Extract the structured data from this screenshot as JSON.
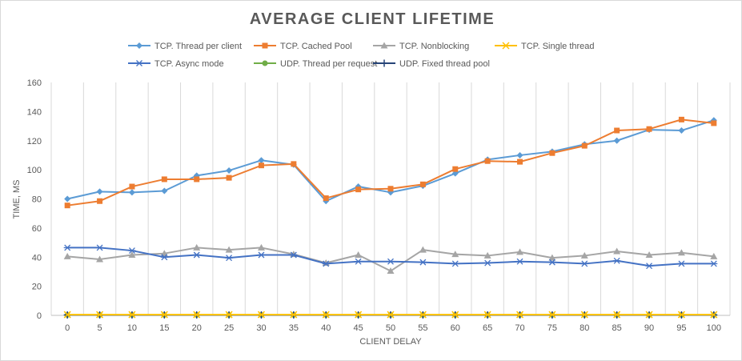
{
  "chart_data": {
    "type": "line",
    "title": "AVERAGE CLIENT LIFETIME",
    "xlabel": "CLIENT DELAY",
    "ylabel": "TIME, MS",
    "ylim": [
      0,
      160
    ],
    "yticks": [
      0,
      20,
      40,
      60,
      80,
      100,
      120,
      140,
      160
    ],
    "grid": "vertical",
    "legend": "top",
    "categories": [
      "0",
      "5",
      "10",
      "15",
      "20",
      "25",
      "30",
      "35",
      "40",
      "45",
      "50",
      "55",
      "60",
      "65",
      "70",
      "75",
      "80",
      "85",
      "90",
      "95",
      "100"
    ],
    "series": [
      {
        "name": "TCP. Thread per client",
        "color": "#5b9bd5",
        "marker": "diamond",
        "values": [
          80,
          85,
          84.5,
          85.5,
          96,
          99.5,
          106.5,
          103.5,
          78.5,
          88.5,
          84.5,
          89,
          97.5,
          107,
          110,
          112.5,
          117.5,
          120,
          127.5,
          127,
          134
        ]
      },
      {
        "name": "TCP. Cached Pool",
        "color": "#ed7d31",
        "marker": "square",
        "values": [
          75.5,
          78.5,
          88.5,
          93.5,
          93.5,
          94.5,
          103,
          104,
          80.5,
          86.5,
          87,
          90,
          100.5,
          106,
          105.5,
          111.5,
          116.5,
          127,
          128,
          134.5,
          132
        ]
      },
      {
        "name": "TCP. Nonblocking",
        "color": "#a5a5a5",
        "marker": "triangle",
        "values": [
          40.5,
          38.5,
          41.5,
          42.5,
          46.5,
          45,
          46.5,
          42,
          36,
          41.5,
          30.5,
          45,
          42,
          41,
          43.5,
          39.5,
          41,
          44,
          41.5,
          43,
          40.5
        ]
      },
      {
        "name": "TCP. Single thread",
        "color": "#ffc000",
        "marker": "x",
        "values": [
          0.5,
          0.5,
          0.5,
          0.5,
          0.5,
          0.5,
          0.5,
          0.5,
          0.5,
          0.5,
          0.5,
          0.5,
          0.5,
          0.5,
          0.5,
          0.5,
          0.5,
          0.5,
          0.5,
          0.5,
          0.5
        ]
      },
      {
        "name": "TCP. Async mode",
        "color": "#4472c4",
        "marker": "asterisk",
        "values": [
          46.5,
          46.5,
          44.5,
          40,
          41.5,
          39.5,
          41.5,
          41.5,
          35.5,
          37,
          37,
          36.5,
          35.5,
          36,
          37,
          36.5,
          35.5,
          37.5,
          34,
          35.5,
          35.5
        ]
      },
      {
        "name": "UDP. Thread per request",
        "color": "#70ad47",
        "marker": "circle",
        "values": [
          0.3,
          0.3,
          0.3,
          0.3,
          0.3,
          0.3,
          0.3,
          0.3,
          0.3,
          0.3,
          0.3,
          0.3,
          0.3,
          0.3,
          0.3,
          0.3,
          0.3,
          0.3,
          0.3,
          0.3,
          0.3
        ]
      },
      {
        "name": "UDP. Fixed thread pool",
        "color": "#264478",
        "marker": "plus",
        "values": [
          0.3,
          0.3,
          0.3,
          0.3,
          0.3,
          0.3,
          0.3,
          0.3,
          0.3,
          0.3,
          0.3,
          0.3,
          0.3,
          0.3,
          0.3,
          0.3,
          0.3,
          0.3,
          0.3,
          0.3,
          0.3
        ]
      }
    ]
  }
}
